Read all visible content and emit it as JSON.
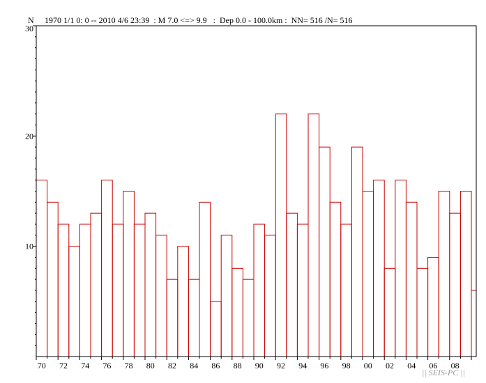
{
  "header": {
    "y_symbol": "N",
    "query": "1970 1/1 0: 0 -- 2010 4/6 23:39  : M 7.0 <=> 9.9   :  Dep 0.0 - 100.0km :  NN= 516 /N= 516"
  },
  "watermark": "|| SEIS-PC ||",
  "colors": {
    "bar": "#cc0000",
    "axis": "#000000",
    "watermark": "#9a9a9a"
  },
  "chart_data": {
    "type": "bar",
    "title": "",
    "xlabel": "",
    "ylabel": "N",
    "ylim": [
      0,
      30
    ],
    "y_ticks": [
      "10",
      "20",
      "30"
    ],
    "x_ticks": [
      "70",
      "72",
      "74",
      "76",
      "78",
      "80",
      "82",
      "84",
      "86",
      "88",
      "90",
      "92",
      "94",
      "96",
      "98",
      "00",
      "02",
      "04",
      "06",
      "08"
    ],
    "categories": [
      "1970",
      "1971",
      "1972",
      "1973",
      "1974",
      "1975",
      "1976",
      "1977",
      "1978",
      "1979",
      "1980",
      "1981",
      "1982",
      "1983",
      "1984",
      "1985",
      "1986",
      "1987",
      "1988",
      "1989",
      "1990",
      "1991",
      "1992",
      "1993",
      "1994",
      "1995",
      "1996",
      "1997",
      "1998",
      "1999",
      "2000",
      "2001",
      "2002",
      "2003",
      "2004",
      "2005",
      "2006",
      "2007",
      "2008",
      "2009",
      "2010"
    ],
    "values": [
      16,
      14,
      12,
      10,
      12,
      13,
      16,
      12,
      15,
      12,
      13,
      11,
      7,
      10,
      7,
      14,
      5,
      11,
      8,
      7,
      12,
      11,
      22,
      13,
      12,
      22,
      19,
      14,
      12,
      19,
      15,
      16,
      8,
      16,
      14,
      8,
      9,
      15,
      13,
      15,
      6
    ],
    "grid": false
  }
}
